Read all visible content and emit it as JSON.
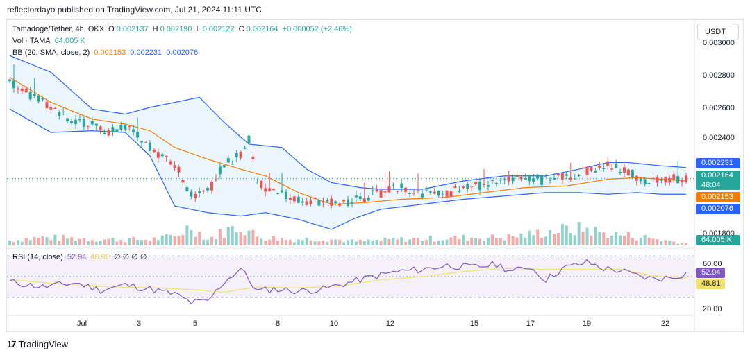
{
  "header": {
    "published": "reflectordayo published on TradingView.com, Jul 21, 2024 11:11 UTC"
  },
  "legend": {
    "pair": "Tamadoge/Tether, 4h, OKX",
    "o_label": "O",
    "o_value": "0.002137",
    "h_label": "H",
    "h_value": "0.002190",
    "l_label": "L",
    "l_value": "0.002122",
    "c_label": "C",
    "c_value": "0.002164",
    "change": "+0.000052 (+2.46%)",
    "vol_label": "Vol · TAMA",
    "vol_value": "64.005 K",
    "bb_label": "BB (20, SMA, close, 2)",
    "bb_basis": "0.002153",
    "bb_upper": "0.002231",
    "bb_lower": "0.002076",
    "rsi_label": "RSI (14, close)",
    "rsi_value": "52.94",
    "rsi_ma": "48.81",
    "rsi_extra": "∅ ∅ ∅ ∅"
  },
  "currency": "USDT",
  "price_tags": {
    "upper": "0.002231",
    "last": "0.002164",
    "countdown": "48:04",
    "basis": "0.002153",
    "lower": "0.002076",
    "volume": "64.005 K",
    "rsi": "52.94",
    "rsi_ma": "48.81"
  },
  "footer": {
    "brand": "TradingView"
  },
  "colors": {
    "up": "#26a69a",
    "down": "#ef5350",
    "bb_basis": "#f57c00",
    "bb_band": "#2962ff",
    "bb_fill": "#e3f2fd",
    "rsi": "#7e57c2",
    "rsi_ma": "#f4e06d",
    "tag_blue": "#2962ff",
    "tag_orange": "#f57c00"
  },
  "chart_data": {
    "type": "candlestick",
    "title": "Tamadoge/Tether, 4h, OKX",
    "y_ticks": [
      "0.003000",
      "0.002800",
      "0.002600",
      "0.002400",
      "0.001800"
    ],
    "ylim": [
      0.00176,
      0.00305
    ],
    "x_ticks": [
      "Jul",
      "3",
      "5",
      "8",
      "10",
      "12",
      "15",
      "17",
      "19",
      "22"
    ],
    "rsi_ticks": [
      "60.00",
      "20.00"
    ],
    "rsi_levels": [
      70,
      50,
      30
    ],
    "price_anchors": [
      [
        0,
        0.00275
      ],
      [
        6,
        0.00265
      ],
      [
        12,
        0.00255
      ],
      [
        18,
        0.0025
      ],
      [
        24,
        0.00245
      ],
      [
        28,
        0.00248
      ],
      [
        34,
        0.00235
      ],
      [
        40,
        0.00225
      ],
      [
        44,
        0.00207
      ],
      [
        48,
        0.00208
      ],
      [
        52,
        0.00225
      ],
      [
        56,
        0.0023
      ],
      [
        58,
        0.0024
      ],
      [
        60,
        0.00215
      ],
      [
        64,
        0.00208
      ],
      [
        68,
        0.00205
      ],
      [
        72,
        0.00203
      ],
      [
        76,
        0.00202
      ],
      [
        80,
        0.00202
      ],
      [
        85,
        0.00204
      ],
      [
        90,
        0.00208
      ],
      [
        95,
        0.00212
      ],
      [
        100,
        0.00207
      ],
      [
        105,
        0.00207
      ],
      [
        110,
        0.0021
      ],
      [
        115,
        0.00213
      ],
      [
        120,
        0.00216
      ],
      [
        125,
        0.00218
      ],
      [
        130,
        0.00215
      ],
      [
        135,
        0.00218
      ],
      [
        140,
        0.00221
      ],
      [
        145,
        0.00225
      ],
      [
        150,
        0.0022
      ],
      [
        155,
        0.00214
      ],
      [
        160,
        0.00216
      ],
      [
        164,
        0.00216
      ]
    ],
    "bb_upper_anchors": [
      [
        0,
        0.0029
      ],
      [
        10,
        0.0028
      ],
      [
        20,
        0.00258
      ],
      [
        28,
        0.00255
      ],
      [
        34,
        0.00259
      ],
      [
        40,
        0.00262
      ],
      [
        46,
        0.00265
      ],
      [
        52,
        0.0025
      ],
      [
        58,
        0.00237
      ],
      [
        66,
        0.00235
      ],
      [
        72,
        0.00222
      ],
      [
        78,
        0.00214
      ],
      [
        85,
        0.00211
      ],
      [
        90,
        0.0021
      ],
      [
        100,
        0.0021
      ],
      [
        110,
        0.00215
      ],
      [
        120,
        0.00218
      ],
      [
        130,
        0.00218
      ],
      [
        138,
        0.00222
      ],
      [
        145,
        0.00226
      ],
      [
        150,
        0.00226
      ],
      [
        158,
        0.00224
      ],
      [
        164,
        0.00223
      ]
    ],
    "bb_lower_anchors": [
      [
        0,
        0.00258
      ],
      [
        10,
        0.00244
      ],
      [
        20,
        0.00245
      ],
      [
        28,
        0.00244
      ],
      [
        34,
        0.0023
      ],
      [
        40,
        0.002
      ],
      [
        48,
        0.00196
      ],
      [
        56,
        0.00194
      ],
      [
        62,
        0.00196
      ],
      [
        70,
        0.00192
      ],
      [
        78,
        0.00186
      ],
      [
        84,
        0.00193
      ],
      [
        90,
        0.00198
      ],
      [
        100,
        0.00201
      ],
      [
        110,
        0.00204
      ],
      [
        120,
        0.00206
      ],
      [
        130,
        0.00208
      ],
      [
        138,
        0.00208
      ],
      [
        145,
        0.00207
      ],
      [
        152,
        0.00208
      ],
      [
        158,
        0.00207
      ],
      [
        164,
        0.00207
      ]
    ],
    "bb_basis_anchors": [
      [
        0,
        0.00277
      ],
      [
        10,
        0.00262
      ],
      [
        20,
        0.00252
      ],
      [
        28,
        0.00249
      ],
      [
        34,
        0.00245
      ],
      [
        40,
        0.00235
      ],
      [
        48,
        0.00228
      ],
      [
        56,
        0.00222
      ],
      [
        62,
        0.00218
      ],
      [
        70,
        0.00208
      ],
      [
        78,
        0.00201
      ],
      [
        86,
        0.00202
      ],
      [
        95,
        0.00204
      ],
      [
        105,
        0.00205
      ],
      [
        115,
        0.00208
      ],
      [
        125,
        0.00211
      ],
      [
        135,
        0.00212
      ],
      [
        145,
        0.00216
      ],
      [
        152,
        0.00217
      ],
      [
        158,
        0.00216
      ],
      [
        164,
        0.00215
      ]
    ],
    "rsi_anchors": [
      [
        0,
        45
      ],
      [
        8,
        40
      ],
      [
        16,
        44
      ],
      [
        22,
        37
      ],
      [
        28,
        42
      ],
      [
        34,
        38
      ],
      [
        40,
        33
      ],
      [
        44,
        25
      ],
      [
        48,
        26
      ],
      [
        52,
        45
      ],
      [
        56,
        58
      ],
      [
        60,
        36
      ],
      [
        64,
        38
      ],
      [
        70,
        36
      ],
      [
        76,
        38
      ],
      [
        82,
        44
      ],
      [
        88,
        50
      ],
      [
        94,
        55
      ],
      [
        100,
        57
      ],
      [
        106,
        61
      ],
      [
        112,
        59
      ],
      [
        118,
        62
      ],
      [
        122,
        55
      ],
      [
        126,
        60
      ],
      [
        130,
        47
      ],
      [
        134,
        58
      ],
      [
        140,
        64
      ],
      [
        144,
        58
      ],
      [
        148,
        56
      ],
      [
        152,
        51
      ],
      [
        156,
        48
      ],
      [
        160,
        49
      ],
      [
        164,
        52.94
      ]
    ],
    "rsi_ma_anchors": [
      [
        0,
        47
      ],
      [
        12,
        43
      ],
      [
        24,
        40
      ],
      [
        36,
        39
      ],
      [
        46,
        37
      ],
      [
        52,
        35
      ],
      [
        60,
        40
      ],
      [
        70,
        39
      ],
      [
        80,
        41
      ],
      [
        90,
        47
      ],
      [
        100,
        50
      ],
      [
        110,
        55
      ],
      [
        120,
        58
      ],
      [
        130,
        57
      ],
      [
        140,
        57
      ],
      [
        148,
        57
      ],
      [
        156,
        51
      ],
      [
        164,
        48.81
      ]
    ],
    "volume_anchors": [
      [
        0,
        0.25
      ],
      [
        8,
        0.4
      ],
      [
        16,
        0.35
      ],
      [
        24,
        0.3
      ],
      [
        34,
        0.3
      ],
      [
        40,
        0.45
      ],
      [
        44,
        1.0
      ],
      [
        48,
        0.3
      ],
      [
        52,
        0.7
      ],
      [
        56,
        1.0
      ],
      [
        60,
        0.45
      ],
      [
        68,
        0.3
      ],
      [
        76,
        0.35
      ],
      [
        84,
        0.2
      ],
      [
        94,
        0.3
      ],
      [
        104,
        0.35
      ],
      [
        112,
        0.4
      ],
      [
        120,
        0.4
      ],
      [
        126,
        0.55
      ],
      [
        132,
        0.75
      ],
      [
        140,
        0.85
      ],
      [
        144,
        0.6
      ],
      [
        150,
        0.5
      ],
      [
        156,
        0.35
      ],
      [
        164,
        0.1
      ]
    ],
    "bar_count": 165
  }
}
